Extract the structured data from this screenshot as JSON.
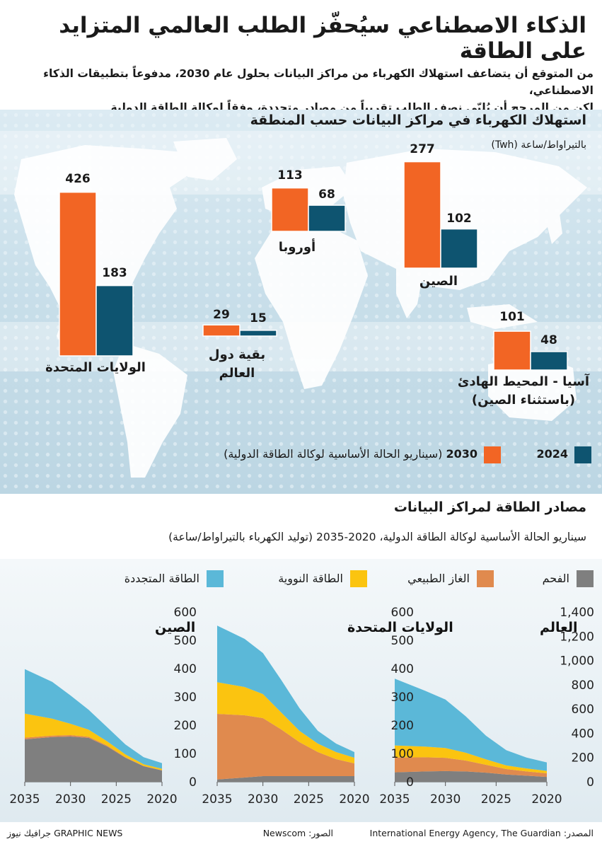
{
  "title": "الذكاء الاصطناعي سيُحفّز الطلب العالمي المتزايد على الطاقة",
  "intro": {
    "line1": "من المتوقع أن يتضاعف استهلاك الكهرباء من مراكز البيانات بحلول عام 2030، مدفوعاً بتطبيقات الذكاء الاصطناعي،",
    "line2": "لكن من المرجح أن يُلبّى نصف الطلب تقريباً من مصادر متجددة، وفقاً لوكالة الطاقة الدولية"
  },
  "section1": {
    "title": "استهلاك الكهرباء في مراكز البيانات حسب المنطقة",
    "unit": "بالتيراواط/ساعة (Twh)"
  },
  "colors": {
    "y2030": "#f26524",
    "y2024": "#0e5470",
    "coal": "#7f7f7f",
    "gas": "#e08a4e",
    "nuclear": "#fbc410",
    "renewable": "#5bb8d8"
  },
  "regions": [
    {
      "name": "الولايات المتحدة",
      "v2030": 426,
      "v2024": 183
    },
    {
      "name": "أوروبا",
      "v2030": 113,
      "v2024": 68
    },
    {
      "name": "الصين",
      "v2030": 277,
      "v2024": 102
    },
    {
      "name": "بقية دول",
      "name2": "العالم",
      "v2030": 29,
      "v2024": 15
    },
    {
      "name": "آسيا - المحيط الهادئ",
      "name2": "(باستثناء الصين)",
      "v2030": 101,
      "v2024": 48
    }
  ],
  "legend1": {
    "y2030_year": "2030",
    "y2030_note": "(سيناريو الحالة الأساسية لوكالة الطاقة الدولية)",
    "y2024": "2024"
  },
  "section2": {
    "title": "مصادر الطاقة لمراكز البيانات",
    "subtitle": "سيناريو الحالة الأساسية لوكالة الطاقة الدولية، 2020-2035 (توليد الكهرباء بالتيراواط/ساعة)"
  },
  "legend2": {
    "coal": "الفحم",
    "gas": "الغاز الطبيعي",
    "nuclear": "الطاقة النووية",
    "renewable": "الطاقة المتجددة"
  },
  "chart_data": [
    {
      "type": "area",
      "title": "العالم",
      "x": [
        2020,
        2022,
        2024,
        2026,
        2028,
        2030,
        2032,
        2035
      ],
      "x_ticks": [
        "2020",
        "2025",
        "2030",
        "2035"
      ],
      "y_ticks": [
        "0",
        "200",
        "400",
        "600",
        "800",
        "1,000",
        "1,200",
        "1,400"
      ],
      "ylim": [
        0,
        1400
      ],
      "series": [
        {
          "name": "الفحم",
          "values": [
            40,
            50,
            60,
            75,
            85,
            88,
            85,
            78
          ]
        },
        {
          "name": "الغاز الطبيعي",
          "values": [
            30,
            35,
            45,
            65,
            90,
            110,
            117,
            122
          ]
        },
        {
          "name": "الطاقة النووية",
          "values": [
            20,
            25,
            30,
            45,
            65,
            80,
            88,
            100
          ]
        },
        {
          "name": "الطاقة المتجددة",
          "values": [
            70,
            90,
            125,
            195,
            300,
            400,
            460,
            550
          ]
        }
      ]
    },
    {
      "type": "area",
      "title": "الولايات المتحدة",
      "x": [
        2020,
        2022,
        2024,
        2026,
        2028,
        2030,
        2032,
        2035
      ],
      "x_ticks": [
        "2020",
        "2025",
        "2030",
        "2035"
      ],
      "y_ticks": [
        "0",
        "100",
        "200",
        "300",
        "400",
        "500",
        "600"
      ],
      "ylim": [
        0,
        600
      ],
      "series": [
        {
          "name": "الفحم",
          "values": [
            20,
            20,
            20,
            20,
            20,
            20,
            15,
            8
          ]
        },
        {
          "name": "الغاز الطبيعي",
          "values": [
            45,
            60,
            85,
            120,
            165,
            205,
            220,
            232
          ]
        },
        {
          "name": "الطاقة النووية",
          "values": [
            20,
            25,
            30,
            40,
            60,
            85,
            100,
            112
          ]
        },
        {
          "name": "الطاقة المتجددة",
          "values": [
            20,
            30,
            45,
            80,
            115,
            145,
            170,
            200
          ]
        }
      ]
    },
    {
      "type": "area",
      "title": "الصين",
      "x": [
        2020,
        2022,
        2024,
        2026,
        2028,
        2030,
        2032,
        2035
      ],
      "x_ticks": [
        "2020",
        "2025",
        "2030",
        "2035"
      ],
      "y_ticks": [
        "0",
        "100",
        "200",
        "300",
        "400",
        "500",
        "600"
      ],
      "ylim": [
        0,
        600
      ],
      "series": [
        {
          "name": "الفحم",
          "values": [
            40,
            55,
            85,
            125,
            155,
            160,
            158,
            150
          ]
        },
        {
          "name": "الغاز الطبيعي",
          "values": [
            1,
            1,
            2,
            3,
            4,
            5,
            5,
            6
          ]
        },
        {
          "name": "الطاقة النووية",
          "values": [
            5,
            6,
            10,
            15,
            25,
            40,
            60,
            85
          ]
        },
        {
          "name": "الطاقة المتجددة",
          "values": [
            20,
            25,
            35,
            50,
            70,
            100,
            130,
            157
          ]
        }
      ]
    }
  ],
  "footer": {
    "source": "المصدر: International Energy Agency, The Guardian",
    "photos": "الصور: Newscom",
    "brand": "جرافيك نيوز GRAPHIC NEWS"
  }
}
